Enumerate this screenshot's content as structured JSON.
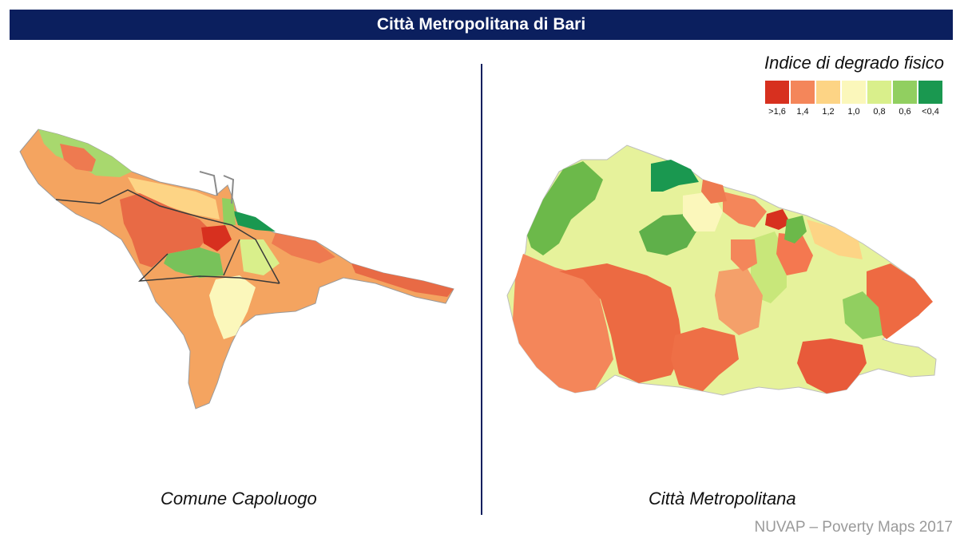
{
  "header": {
    "title": "Città Metropolitana di Bari"
  },
  "legend": {
    "title": "Indice di degrado fisico",
    "classes": [
      {
        "label": ">1,6",
        "color": "#d7301f"
      },
      {
        "label": "1,4",
        "color": "#f4865a"
      },
      {
        "label": "1,2",
        "color": "#fdd485"
      },
      {
        "label": "1,0",
        "color": "#fbf7bb"
      },
      {
        "label": "0,8",
        "color": "#d9ef8b"
      },
      {
        "label": "0,6",
        "color": "#91cf60"
      },
      {
        "label": "<0,4",
        "color": "#1a9850"
      }
    ]
  },
  "maps": {
    "left_caption": "Comune Capoluogo",
    "right_caption": "Città Metropolitana"
  },
  "footer": {
    "credit": "NUVAP – Poverty Maps 2017"
  }
}
